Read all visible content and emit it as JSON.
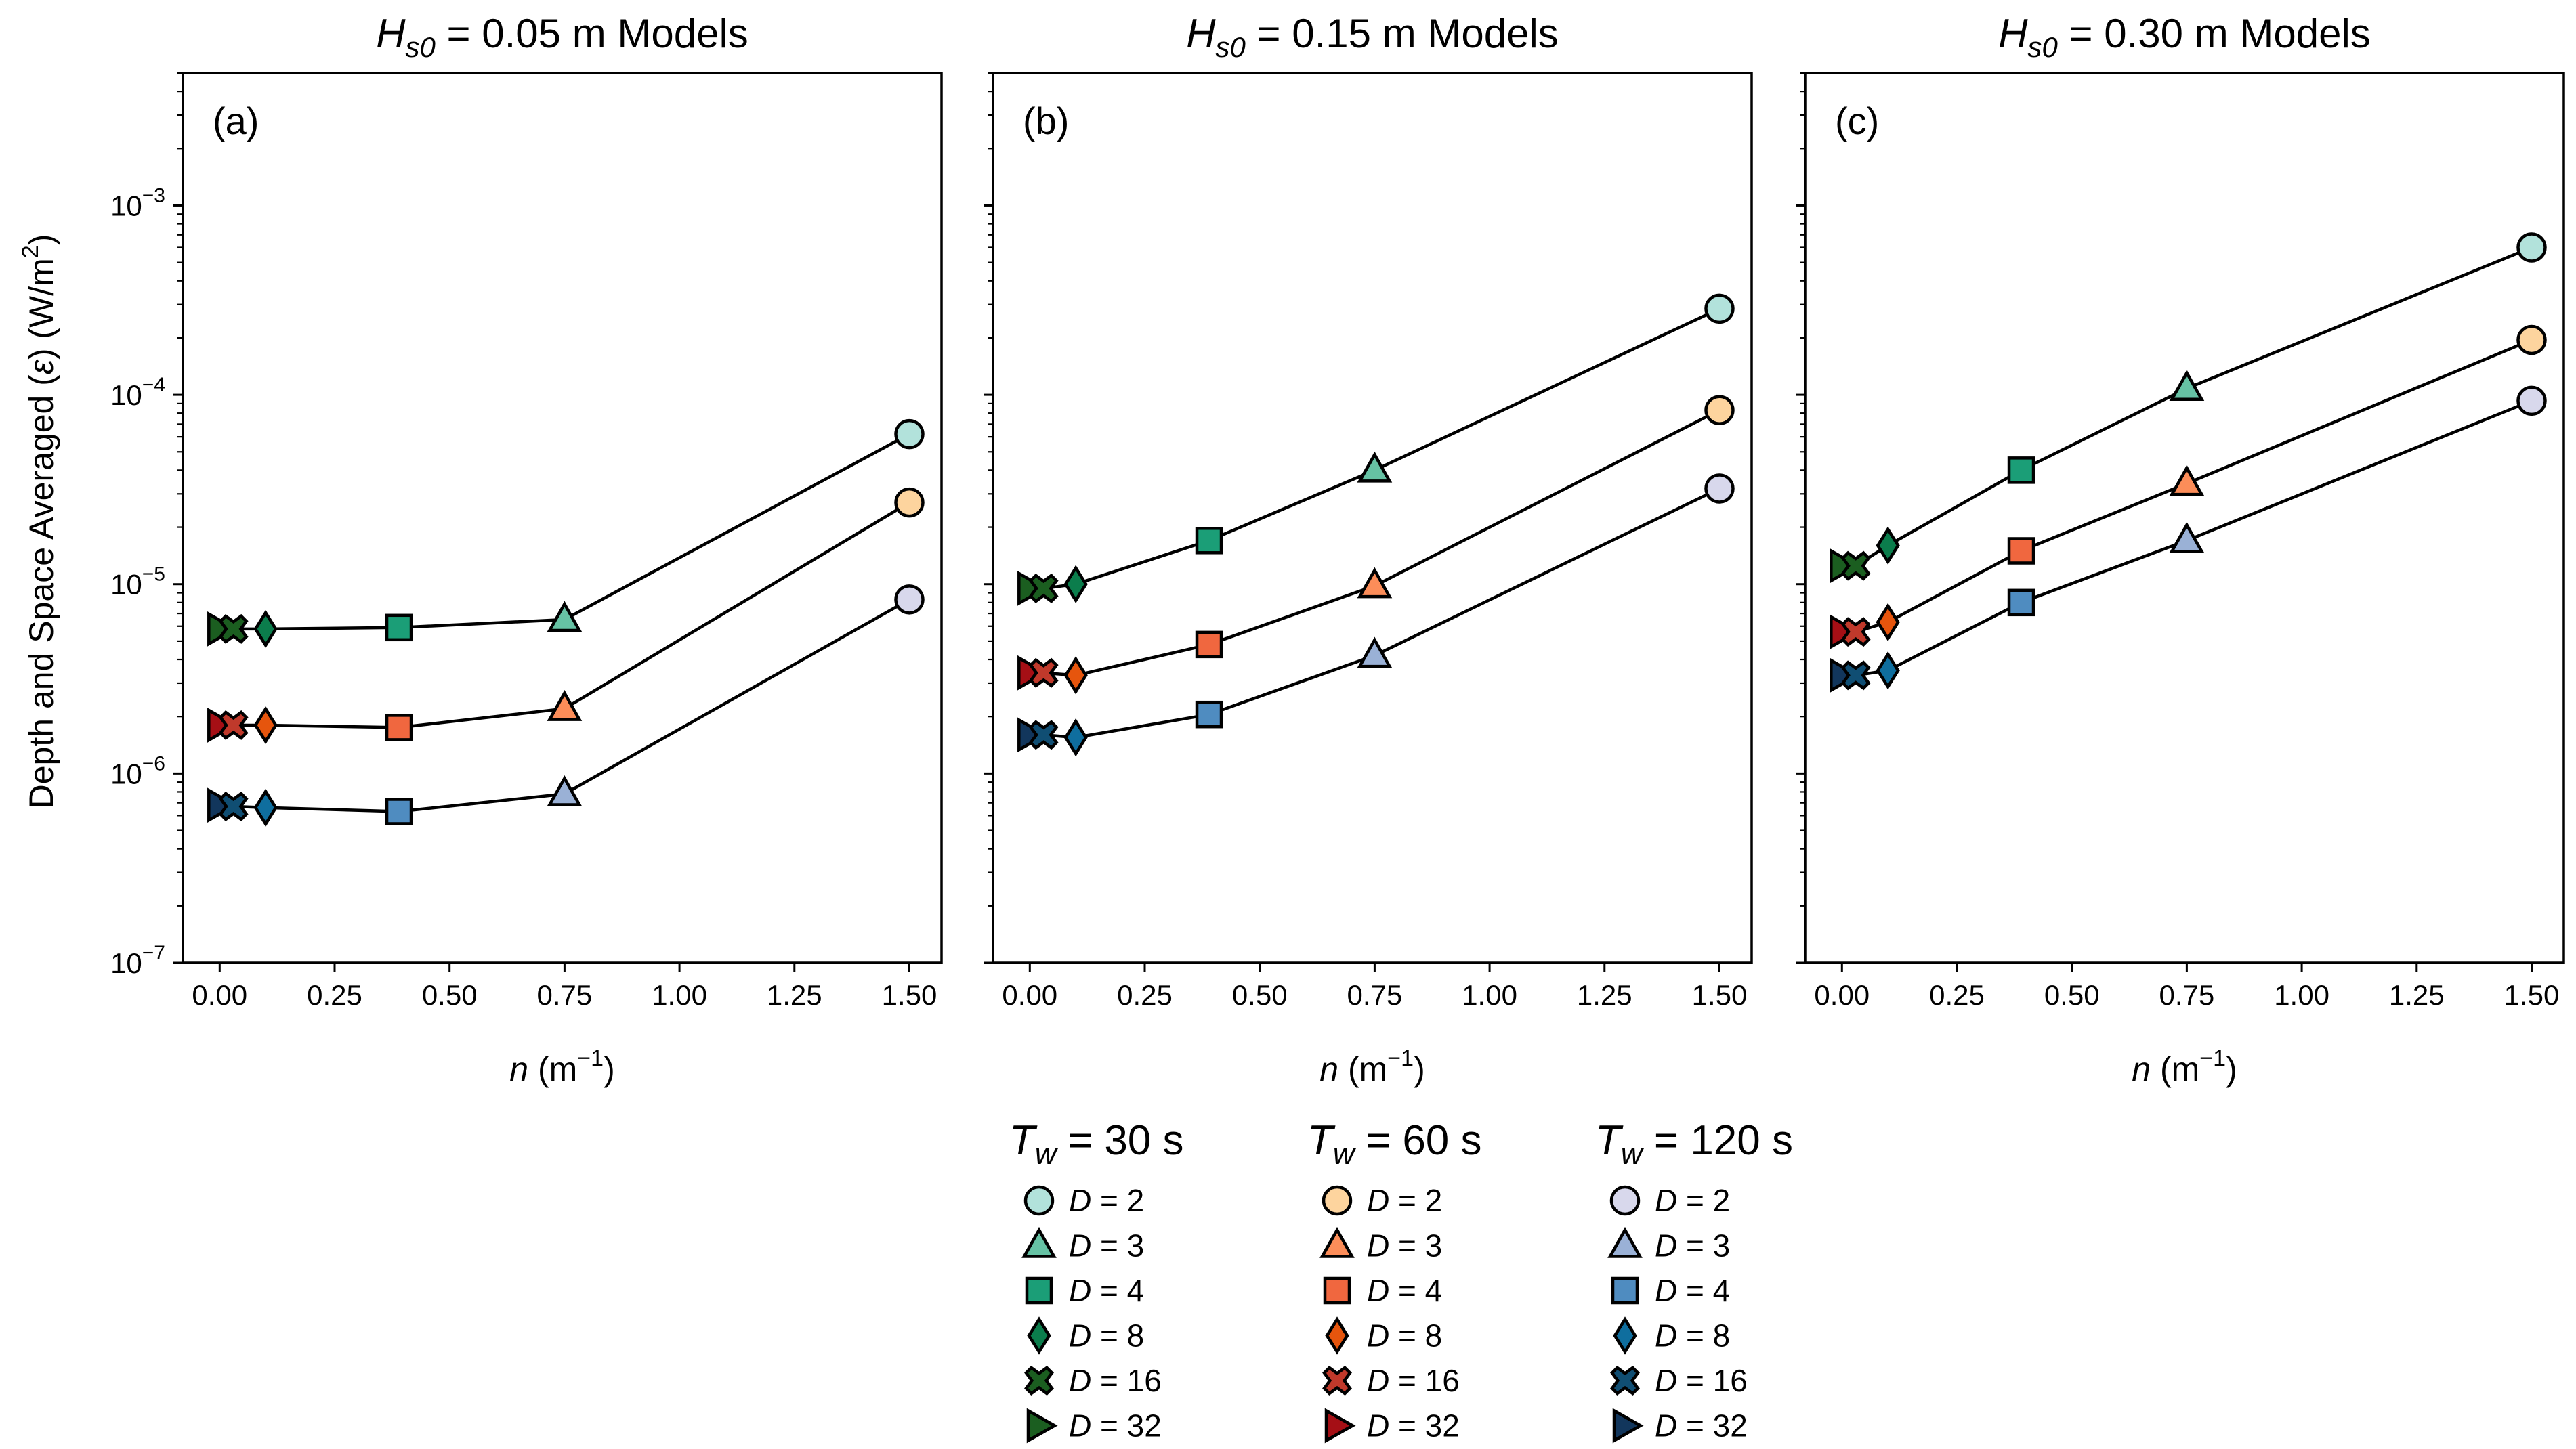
{
  "y_axis_label": "Depth and Space Averaged",
  "y_axis_symbol": "ε",
  "y_axis_units_base": "W/m",
  "y_axis_units_exp": "2",
  "x_axis_symbol": "n",
  "x_axis_units_base": "m",
  "x_axis_units_exp": "−1",
  "legend": {
    "d_label_prefix": "D",
    "groups": [
      {
        "title_symbol": "T",
        "title_sub": "w",
        "title_value": "= 30 s"
      },
      {
        "title_symbol": "T",
        "title_sub": "w",
        "title_value": "= 60 s"
      },
      {
        "title_symbol": "T",
        "title_sub": "w",
        "title_value": "= 120 s"
      }
    ]
  },
  "chart_data": [
    {
      "type": "line",
      "panel_label": "(a)",
      "title_symbol": "H",
      "title_sub": "s0",
      "title_value": "= 0.05 m Models",
      "yscale": "log",
      "ylim": [
        1e-07,
        0.005
      ],
      "xlim": [
        -0.08,
        1.57
      ],
      "xticks": [
        0.0,
        0.25,
        0.5,
        0.75,
        1.0,
        1.25,
        1.5
      ],
      "xtick_labels": [
        "0.00",
        "0.25",
        "0.50",
        "0.75",
        "1.00",
        "1.25",
        "1.50"
      ],
      "yticks": [
        1e-07,
        1e-06,
        1e-05,
        0.0001,
        0.001
      ],
      "ytick_exps": [
        "−7",
        "−6",
        "−5",
        "−4",
        "−3"
      ],
      "series": [
        {
          "name": "T_w = 30 s",
          "colors": [
            "#b2e2db",
            "#66c2a4",
            "#1b9e77",
            "#0b7d4c",
            "#1b5e20",
            "#1b5e20"
          ],
          "D": [
            2,
            3,
            4,
            8,
            16,
            32
          ],
          "x": [
            1.5,
            0.75,
            0.39,
            0.1,
            0.03,
            0.0
          ],
          "values": [
            6.2e-05,
            6.5e-06,
            5.9e-06,
            5.8e-06,
            5.8e-06,
            5.8e-06
          ]
        },
        {
          "name": "T_w = 60 s",
          "colors": [
            "#fdd49e",
            "#fc8d59",
            "#f0673f",
            "#e6550d",
            "#c0392b",
            "#a50f15"
          ],
          "D": [
            2,
            3,
            4,
            8,
            16,
            32
          ],
          "x": [
            1.5,
            0.75,
            0.39,
            0.1,
            0.03,
            0.0
          ],
          "values": [
            2.7e-05,
            2.2e-06,
            1.75e-06,
            1.8e-06,
            1.8e-06,
            1.8e-06
          ]
        },
        {
          "name": "T_w = 120 s",
          "colors": [
            "#d8d8ec",
            "#9ab1d6",
            "#4f8cc0",
            "#0f6e9e",
            "#104e73",
            "#12365c"
          ],
          "D": [
            2,
            3,
            4,
            8,
            16,
            32
          ],
          "x": [
            1.5,
            0.75,
            0.39,
            0.1,
            0.03,
            0.0
          ],
          "values": [
            8.3e-06,
            7.8e-07,
            6.3e-07,
            6.6e-07,
            6.7e-07,
            6.8e-07
          ]
        }
      ]
    },
    {
      "type": "line",
      "panel_label": "(b)",
      "title_symbol": "H",
      "title_sub": "s0",
      "title_value": "= 0.15 m Models",
      "yscale": "log",
      "ylim": [
        1e-07,
        0.005
      ],
      "xlim": [
        -0.08,
        1.57
      ],
      "xticks": [
        0.0,
        0.25,
        0.5,
        0.75,
        1.0,
        1.25,
        1.5
      ],
      "xtick_labels": [
        "0.00",
        "0.25",
        "0.50",
        "0.75",
        "1.00",
        "1.25",
        "1.50"
      ],
      "yticks": [
        1e-07,
        1e-06,
        1e-05,
        0.0001,
        0.001
      ],
      "ytick_exps": [
        "−7",
        "−6",
        "−5",
        "−4",
        "−3"
      ],
      "series": [
        {
          "name": "T_w = 30 s",
          "colors": [
            "#b2e2db",
            "#66c2a4",
            "#1b9e77",
            "#0b7d4c",
            "#1b5e20",
            "#1b5e20"
          ],
          "D": [
            2,
            3,
            4,
            8,
            16,
            32
          ],
          "x": [
            1.5,
            0.75,
            0.39,
            0.1,
            0.03,
            0.0
          ],
          "values": [
            0.000285,
            4e-05,
            1.7e-05,
            1e-05,
            9.5e-06,
            9.5e-06
          ]
        },
        {
          "name": "T_w = 60 s",
          "colors": [
            "#fdd49e",
            "#fc8d59",
            "#f0673f",
            "#e6550d",
            "#c0392b",
            "#a50f15"
          ],
          "D": [
            2,
            3,
            4,
            8,
            16,
            32
          ],
          "x": [
            1.5,
            0.75,
            0.39,
            0.1,
            0.03,
            0.0
          ],
          "values": [
            8.3e-05,
            9.8e-06,
            4.8e-06,
            3.3e-06,
            3.4e-06,
            3.4e-06
          ]
        },
        {
          "name": "T_w = 120 s",
          "colors": [
            "#d8d8ec",
            "#9ab1d6",
            "#4f8cc0",
            "#0f6e9e",
            "#104e73",
            "#12365c"
          ],
          "D": [
            2,
            3,
            4,
            8,
            16,
            32
          ],
          "x": [
            1.5,
            0.75,
            0.39,
            0.1,
            0.03,
            0.0
          ],
          "values": [
            3.2e-05,
            4.2e-06,
            2.05e-06,
            1.55e-06,
            1.6e-06,
            1.6e-06
          ]
        }
      ]
    },
    {
      "type": "line",
      "panel_label": "(c)",
      "title_symbol": "H",
      "title_sub": "s0",
      "title_value": "= 0.30 m Models",
      "yscale": "log",
      "ylim": [
        1e-07,
        0.005
      ],
      "xlim": [
        -0.08,
        1.57
      ],
      "xticks": [
        0.0,
        0.25,
        0.5,
        0.75,
        1.0,
        1.25,
        1.5
      ],
      "xtick_labels": [
        "0.00",
        "0.25",
        "0.50",
        "0.75",
        "1.00",
        "1.25",
        "1.50"
      ],
      "yticks": [
        1e-07,
        1e-06,
        1e-05,
        0.0001,
        0.001
      ],
      "ytick_exps": [
        "−7",
        "−6",
        "−5",
        "−4",
        "−3"
      ],
      "series": [
        {
          "name": "T_w = 30 s",
          "colors": [
            "#b2e2db",
            "#66c2a4",
            "#1b9e77",
            "#0b7d4c",
            "#1b5e20",
            "#1b5e20"
          ],
          "D": [
            2,
            3,
            4,
            8,
            16,
            32
          ],
          "x": [
            1.5,
            0.75,
            0.39,
            0.1,
            0.03,
            0.0
          ],
          "values": [
            0.0006,
            0.000108,
            4e-05,
            1.6e-05,
            1.25e-05,
            1.25e-05
          ]
        },
        {
          "name": "T_w = 60 s",
          "colors": [
            "#fdd49e",
            "#fc8d59",
            "#f0673f",
            "#e6550d",
            "#c0392b",
            "#a50f15"
          ],
          "D": [
            2,
            3,
            4,
            8,
            16,
            32
          ],
          "x": [
            1.5,
            0.75,
            0.39,
            0.1,
            0.03,
            0.0
          ],
          "values": [
            0.000195,
            3.4e-05,
            1.5e-05,
            6.3e-06,
            5.6e-06,
            5.6e-06
          ]
        },
        {
          "name": "T_w = 120 s",
          "colors": [
            "#d8d8ec",
            "#9ab1d6",
            "#4f8cc0",
            "#0f6e9e",
            "#104e73",
            "#12365c"
          ],
          "D": [
            2,
            3,
            4,
            8,
            16,
            32
          ],
          "x": [
            1.5,
            0.75,
            0.39,
            0.1,
            0.03,
            0.0
          ],
          "values": [
            9.3e-05,
            1.7e-05,
            8e-06,
            3.5e-06,
            3.3e-06,
            3.3e-06
          ]
        }
      ]
    }
  ]
}
